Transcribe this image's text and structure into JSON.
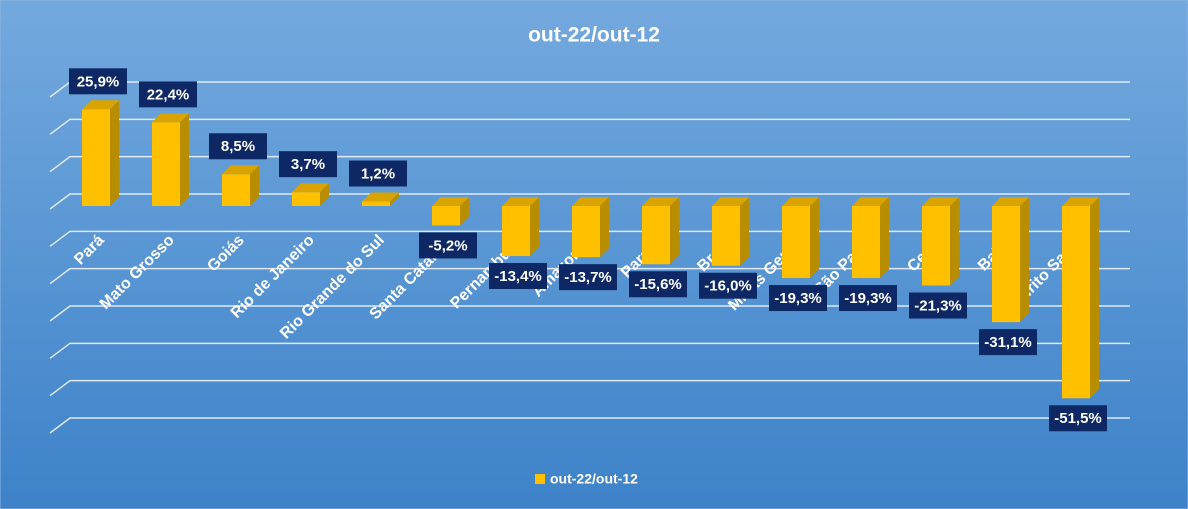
{
  "chart_data": {
    "type": "bar3d",
    "title": "out-22/out-12",
    "categories": [
      "Pará",
      "Mato Grosso",
      "Goiás",
      "Rio de Janeiro",
      "Rio Grande do Sul",
      "Santa Catarina",
      "Pernambuco",
      "Amazonas",
      "Paraná",
      "Brasil",
      "Minas Gerais",
      "São Paulo",
      "Ceará",
      "Bahia",
      "Espírito Santo"
    ],
    "series": [
      {
        "name": "out-22/out-12",
        "color": "#ffc000",
        "values": [
          25.9,
          22.4,
          8.5,
          3.7,
          1.2,
          -5.2,
          -13.4,
          -13.7,
          -15.6,
          -16.0,
          -19.3,
          -19.3,
          -21.3,
          -31.1,
          -51.5
        ],
        "value_labels": [
          "25,9%",
          "22,4%",
          "8,5%",
          "3,7%",
          "1,2%",
          "-5,2%",
          "-13,4%",
          "-13,7%",
          "-15,6%",
          "-16,0%",
          "-19,3%",
          "-19,3%",
          "-21,3%",
          "-31,1%",
          "-51,5%"
        ]
      }
    ],
    "ylim": [
      -60,
      30
    ],
    "yticks": [
      -60,
      -50,
      -40,
      -30,
      -20,
      -10,
      0,
      10,
      20,
      30
    ],
    "grid": true,
    "legend": "bottom"
  }
}
